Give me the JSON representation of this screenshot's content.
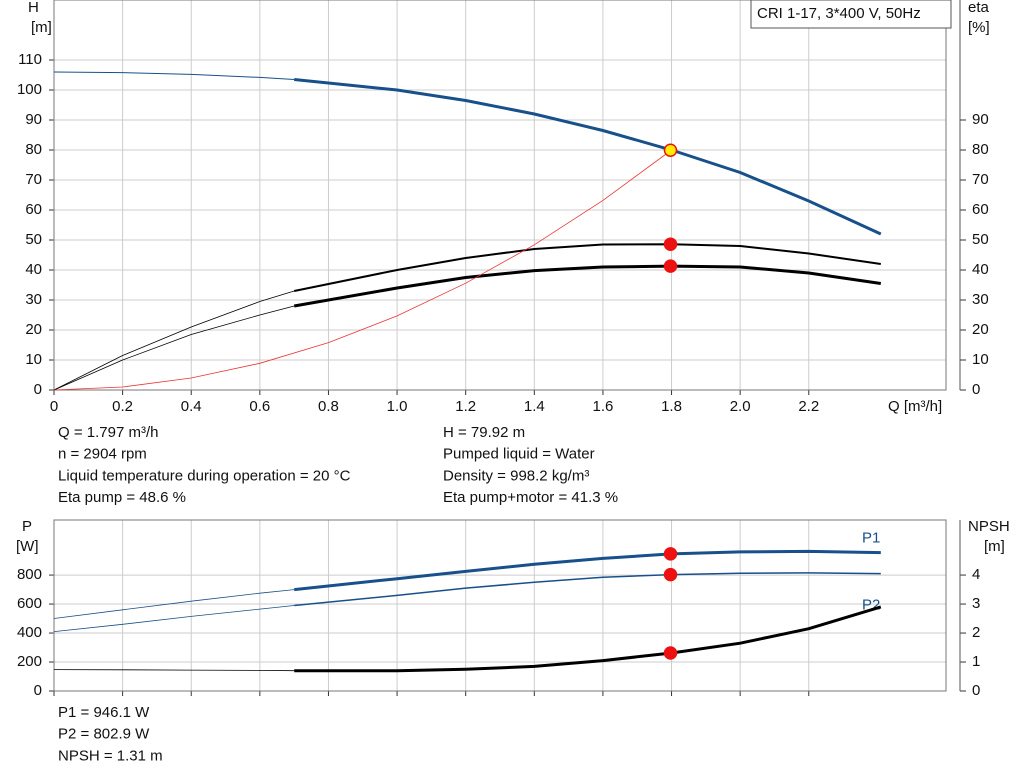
{
  "legend_box": "CRI 1-17, 3*400 V, 50Hz",
  "chart_data": [
    {
      "type": "line",
      "y_label": "H",
      "y_unit": "[m]",
      "y2_label": "eta",
      "y2_unit": "[%]",
      "x_label": "Q [m³/h]",
      "xlim": [
        0,
        2.6
      ],
      "xticks": [
        0,
        0.2,
        0.4,
        0.6,
        0.8,
        {
          "value": 1,
          "label": "1.0"
        },
        1.2,
        1.4,
        1.6,
        1.8,
        {
          "value": 2,
          "label": "2.0"
        },
        2.2
      ],
      "x_tick_labels": true,
      "ylim": [
        0,
        130
      ],
      "yticks": [
        0,
        10,
        20,
        30,
        40,
        50,
        60,
        70,
        80,
        90,
        100,
        110
      ],
      "y2lim": [
        0,
        130
      ],
      "y2ticks": [
        0,
        10,
        20,
        30,
        40,
        50,
        60,
        70,
        80,
        90
      ],
      "grid": true,
      "series": [
        {
          "color": "#17508a",
          "width": 1,
          "axis": "y",
          "x": [
            0,
            0.2,
            0.4,
            0.6,
            0.7
          ],
          "values": [
            106,
            105.8,
            105.2,
            104.2,
            103.5
          ]
        },
        {
          "color": "#17508a",
          "width": 3,
          "axis": "y",
          "x": [
            0.7,
            1.0,
            1.2,
            1.4,
            1.6,
            1.8,
            2.0,
            2.2,
            2.41
          ],
          "values": [
            103.5,
            100,
            96.5,
            92,
            86.5,
            80,
            72.5,
            63,
            52
          ]
        },
        {
          "color": "#000000",
          "width": 0.8,
          "axis": "y2",
          "x": [
            0,
            0.2,
            0.4,
            0.6,
            0.7
          ],
          "values": [
            0,
            11.5,
            21,
            29.5,
            33
          ]
        },
        {
          "color": "#000000",
          "width": 2,
          "axis": "y2",
          "x": [
            0.7,
            1.0,
            1.2,
            1.4,
            1.6,
            1.8,
            2.0,
            2.2,
            2.41
          ],
          "values": [
            33,
            40,
            44,
            47,
            48.5,
            48.6,
            48,
            45.5,
            42
          ]
        },
        {
          "color": "#000000",
          "width": 0.8,
          "axis": "y2",
          "x": [
            0,
            0.2,
            0.4,
            0.6,
            0.7
          ],
          "values": [
            0,
            10,
            18.5,
            25,
            28
          ]
        },
        {
          "color": "#000000",
          "width": 3,
          "axis": "y2",
          "x": [
            0.7,
            1.0,
            1.2,
            1.4,
            1.6,
            1.8,
            2.0,
            2.2,
            2.41
          ],
          "values": [
            28,
            34,
            37.5,
            39.8,
            41,
            41.3,
            41,
            39,
            35.5
          ]
        },
        {
          "color": "#ee3333",
          "width": 0.8,
          "axis": "y",
          "x": [
            0,
            0.2,
            0.4,
            0.6,
            0.8,
            1.0,
            1.2,
            1.4,
            1.6,
            1.8
          ],
          "values": [
            0,
            1,
            4,
            8.9,
            15.8,
            24.7,
            35.6,
            48.4,
            63.2,
            80
          ]
        }
      ],
      "points": [
        {
          "x": 1.797,
          "value": 79.92,
          "axis": "y",
          "color": "#ffee00"
        },
        {
          "x": 1.797,
          "value": 48.6,
          "axis": "y2",
          "color": "#ee1111"
        },
        {
          "x": 1.797,
          "value": 41.3,
          "axis": "y2",
          "color": "#ee1111"
        }
      ]
    },
    {
      "type": "line",
      "y_label": "P",
      "y_unit": "[W]",
      "y2_label": "NPSH",
      "y2_unit": "[m]",
      "xlim": [
        0,
        2.6
      ],
      "xticks": [
        0,
        0.2,
        0.4,
        0.6,
        0.8,
        1,
        1.2,
        1.4,
        1.6,
        1.8,
        2,
        2.2
      ],
      "x_tick_labels": false,
      "ylim": [
        0,
        1180
      ],
      "yticks": [
        0,
        200,
        400,
        600,
        800
      ],
      "y2lim": [
        0,
        5.9
      ],
      "y2ticks": [
        0,
        1,
        2,
        3,
        4
      ],
      "grid": true,
      "series": [
        {
          "color": "#17508a",
          "width": 0.8,
          "axis": "y",
          "x": [
            0,
            0.2,
            0.4,
            0.6,
            0.7
          ],
          "values": [
            500,
            560,
            620,
            675,
            700
          ]
        },
        {
          "name": "P1",
          "color": "#17508a",
          "width": 3,
          "axis": "y",
          "x": [
            0.7,
            1.0,
            1.2,
            1.4,
            1.6,
            1.8,
            2.0,
            2.2,
            2.41
          ],
          "values": [
            700,
            775,
            825,
            875,
            915,
            946,
            960,
            963,
            955
          ]
        },
        {
          "color": "#17508a",
          "width": 0.8,
          "axis": "y",
          "x": [
            0,
            0.2,
            0.4,
            0.6,
            0.7
          ],
          "values": [
            410,
            460,
            515,
            565,
            590
          ]
        },
        {
          "name": "P2",
          "color": "#17508a",
          "width": 1.5,
          "axis": "y",
          "x": [
            0.7,
            1.0,
            1.2,
            1.4,
            1.6,
            1.8,
            2.0,
            2.2,
            2.41
          ],
          "values": [
            590,
            660,
            710,
            750,
            785,
            803,
            812,
            815,
            810
          ]
        },
        {
          "color": "#000000",
          "width": 0.8,
          "axis": "y2",
          "x": [
            0,
            0.2,
            0.4,
            0.6,
            0.7
          ],
          "values": [
            0.74,
            0.73,
            0.72,
            0.71,
            0.7
          ]
        },
        {
          "color": "#000000",
          "width": 3,
          "axis": "y2",
          "x": [
            0.7,
            1.0,
            1.2,
            1.4,
            1.6,
            1.8,
            2.0,
            2.2,
            2.41
          ],
          "values": [
            0.7,
            0.7,
            0.75,
            0.85,
            1.05,
            1.31,
            1.65,
            2.15,
            2.9
          ]
        }
      ],
      "points": [
        {
          "x": 1.797,
          "value": 946.1,
          "axis": "y",
          "color": "#ee1111"
        },
        {
          "x": 1.797,
          "value": 802.9,
          "axis": "y",
          "color": "#ee1111"
        },
        {
          "x": 1.797,
          "value": 1.31,
          "axis": "y2",
          "color": "#ee1111"
        }
      ]
    }
  ],
  "info_left": [
    "Q = 1.797 m³/h",
    "n = 2904 rpm",
    "Liquid temperature during operation = 20 °C",
    "Eta pump = 48.6 %"
  ],
  "info_right": [
    "H = 79.92 m",
    "Pumped liquid = Water",
    "Density = 998.2 kg/m³",
    "Eta pump+motor = 41.3 %"
  ],
  "info_bottom": [
    "P1 = 946.1 W",
    "P2 = 802.9 W",
    "NPSH = 1.31 m"
  ]
}
